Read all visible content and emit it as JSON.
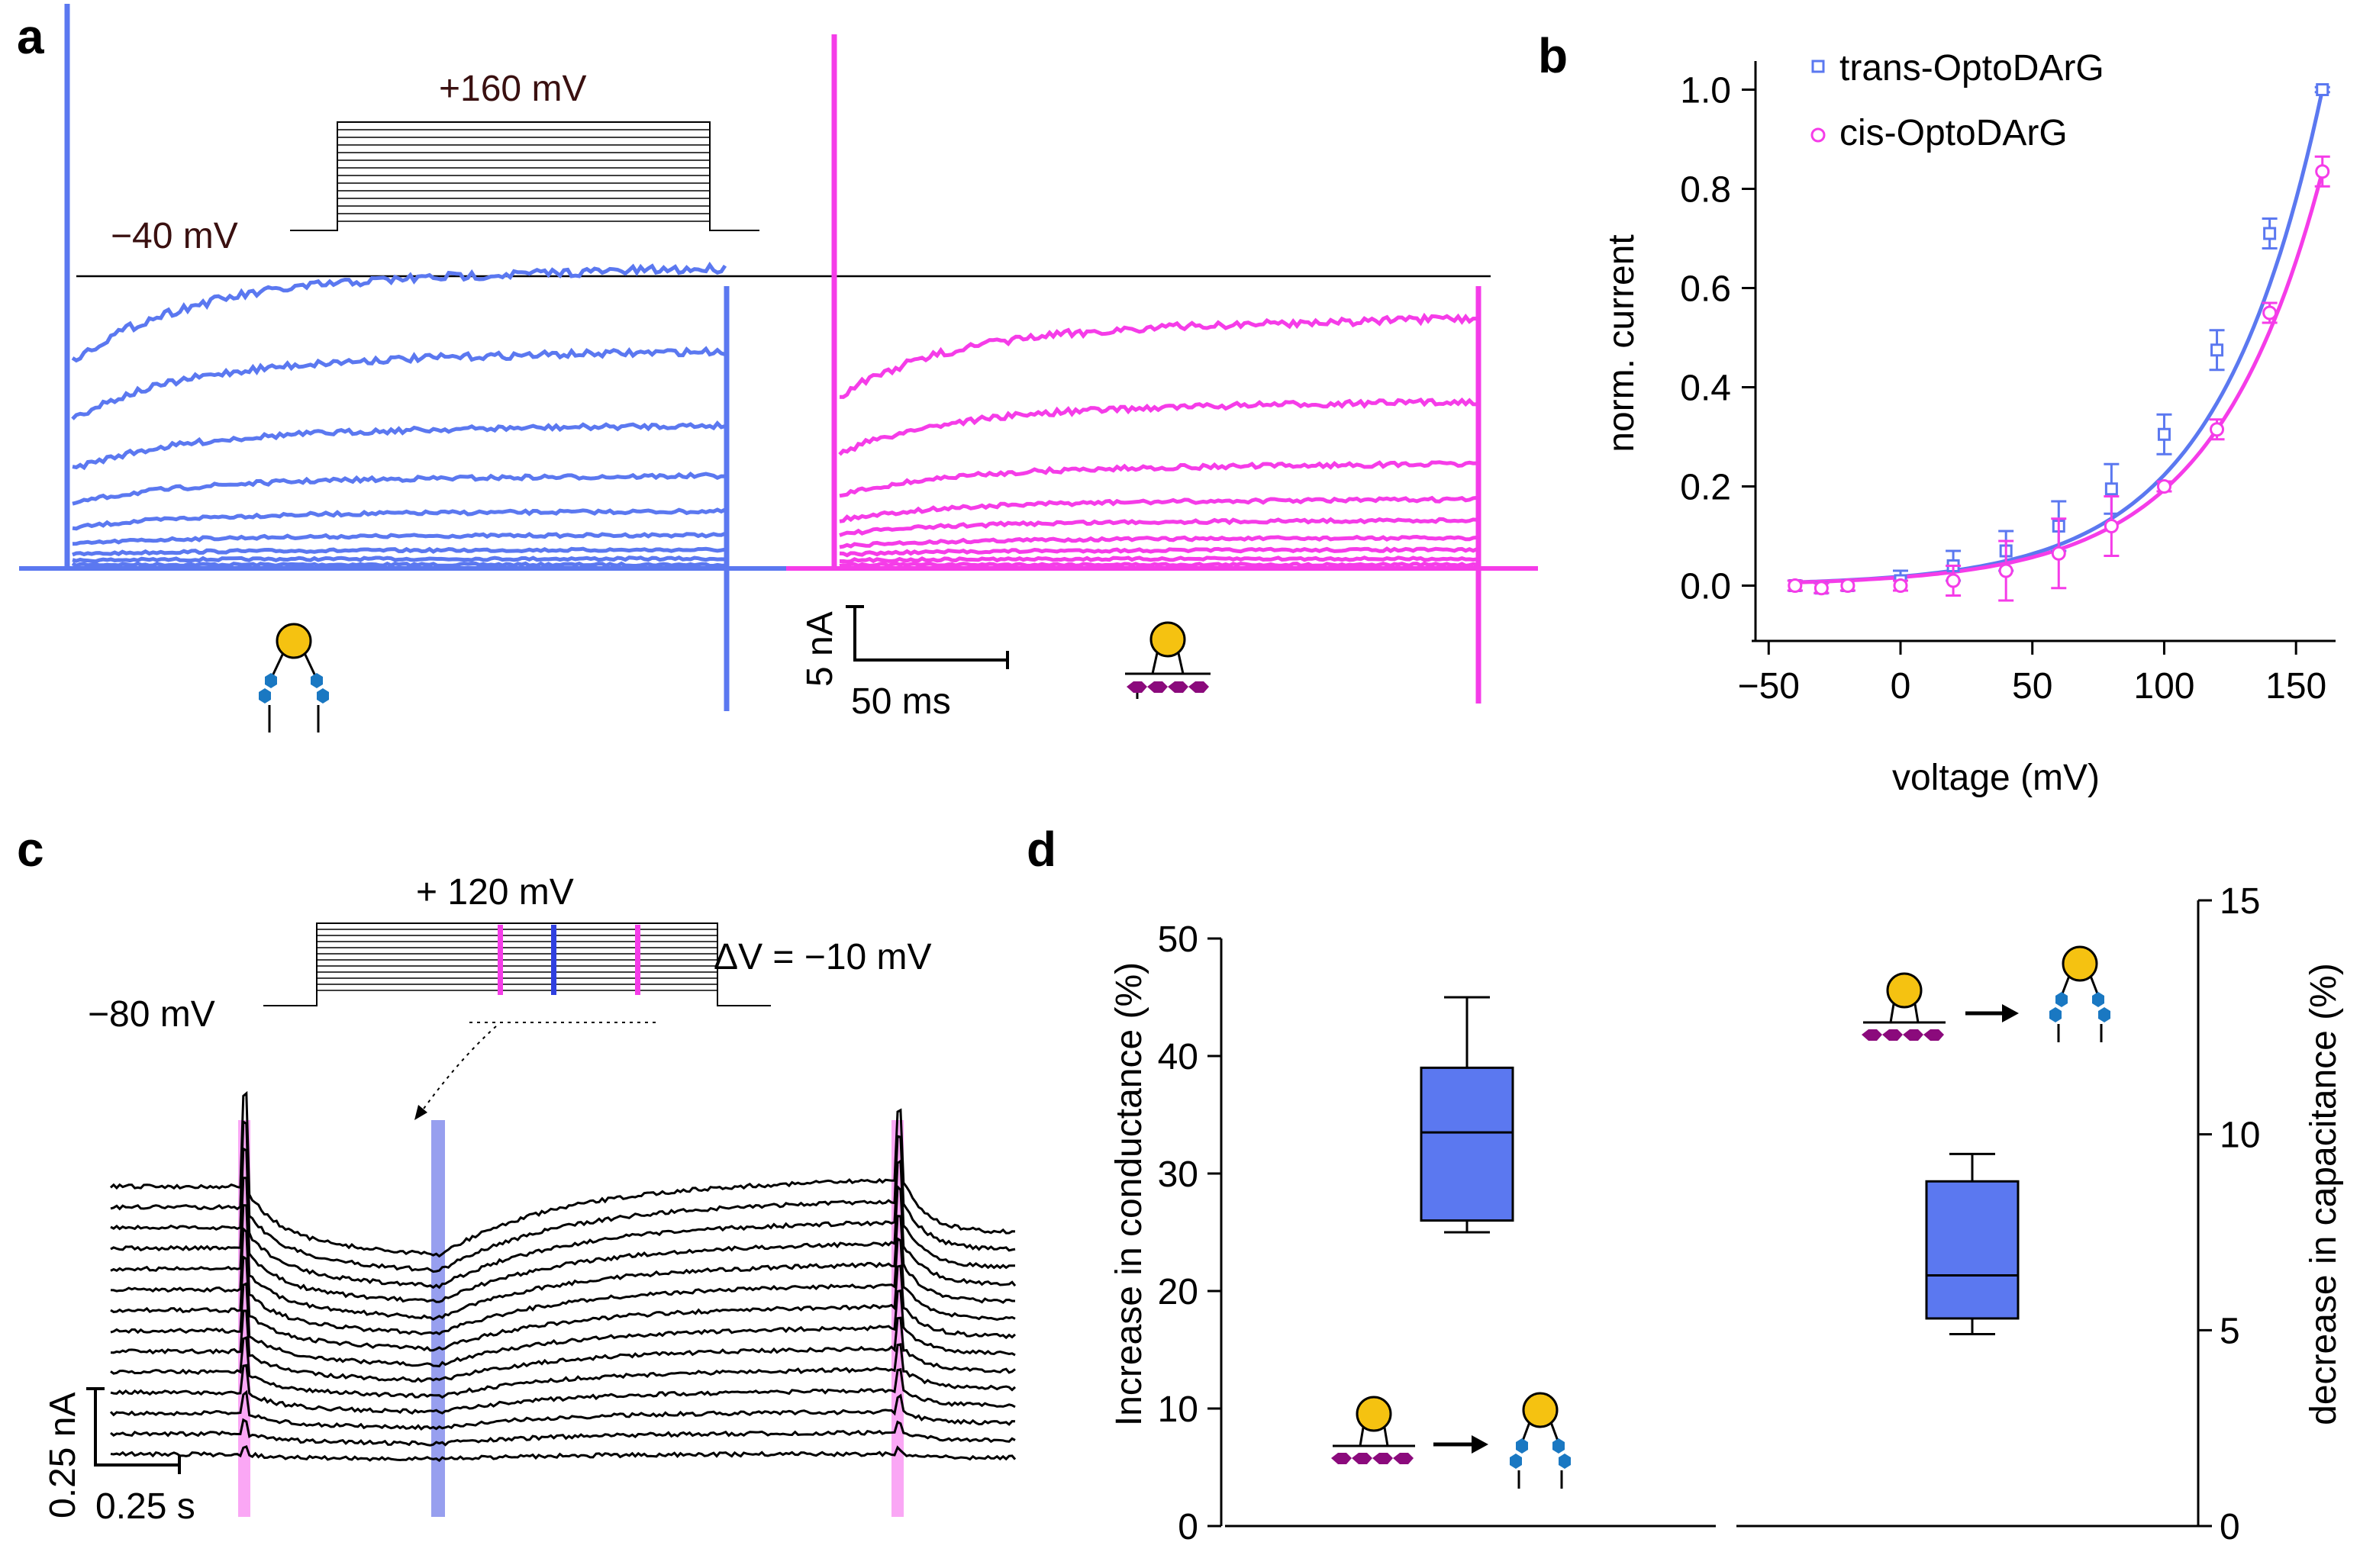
{
  "colors": {
    "trans": "#5b78f0",
    "cis": "#f53ce8",
    "black": "#000000",
    "gold": "#f5c211",
    "teal": "#1a78c2",
    "purple": "#8b0a7c",
    "darkred": "#3a1010"
  },
  "panel_a": {
    "letter": "a",
    "protocol_top": "+160 mV",
    "protocol_hold": "−40 mV",
    "scale_current": "5 nA",
    "scale_time": "50 ms",
    "trans_levels": [
      0.0,
      0.02,
      0.05,
      0.1,
      0.18,
      0.3,
      0.47,
      0.72,
      1.0
    ],
    "cis_levels": [
      0.0,
      0.02,
      0.05,
      0.09,
      0.15,
      0.22,
      0.34,
      0.55,
      0.83
    ]
  },
  "chart_data": {
    "type": "scatter",
    "panel": "b",
    "xlabel": "voltage (mV)",
    "ylabel": "norm. current",
    "xlim": [
      -55,
      165
    ],
    "ylim": [
      -0.05,
      1.05
    ],
    "xticks": [
      "−50",
      "0",
      "50",
      "100",
      "150"
    ],
    "xtick_values": [
      -50,
      0,
      50,
      100,
      150
    ],
    "yticks": [
      "0.0",
      "0.2",
      "0.4",
      "0.6",
      "0.8",
      "1.0"
    ],
    "ytick_values": [
      0,
      0.2,
      0.4,
      0.6,
      0.8,
      1.0
    ],
    "legend_position": "top-left",
    "series": [
      {
        "name": "trans-OptoDArG",
        "marker": "square",
        "x": [
          -40,
          -30,
          -20,
          0,
          20,
          40,
          60,
          80,
          100,
          120,
          140,
          160
        ],
        "y": [
          0.0,
          -0.005,
          0.0,
          0.01,
          0.04,
          0.07,
          0.12,
          0.195,
          0.305,
          0.475,
          0.71,
          1.0
        ],
        "err": [
          0.01,
          0.01,
          0.01,
          0.02,
          0.03,
          0.04,
          0.05,
          0.05,
          0.04,
          0.04,
          0.03,
          0.005
        ]
      },
      {
        "name": "cis-OptoDArG",
        "marker": "circle",
        "x": [
          -40,
          -30,
          -20,
          0,
          20,
          40,
          60,
          80,
          100,
          120,
          140,
          160
        ],
        "y": [
          0.0,
          -0.005,
          0.0,
          0.0,
          0.01,
          0.03,
          0.065,
          0.12,
          0.2,
          0.315,
          0.55,
          0.835
        ],
        "err": [
          0.01,
          0.01,
          0.01,
          0.01,
          0.03,
          0.06,
          0.07,
          0.06,
          0.01,
          0.02,
          0.02,
          0.03
        ]
      }
    ]
  },
  "panel_c": {
    "letter": "c",
    "protocol_top": "+ 120 mV",
    "protocol_hold": "−80 mV",
    "delta_v": "ΔV = −10 mV",
    "scale_current": "0.25 nA",
    "scale_time": "0.25 s"
  },
  "panel_d": {
    "letter": "d",
    "left_ylabel": "Increase in conductance (%)",
    "right_ylabel": "decrease in capacitance (%)",
    "left_yticks": [
      "0",
      "10",
      "20",
      "30",
      "40",
      "50"
    ],
    "right_yticks": [
      "0",
      "5",
      "10",
      "15"
    ],
    "conductance_box": {
      "min": 25,
      "q1": 26,
      "median": 33.5,
      "q3": 39,
      "max": 45
    },
    "capacitance_box": {
      "min": 4.9,
      "q1": 5.3,
      "median": 6.4,
      "q3": 8.8,
      "max": 9.5
    }
  }
}
